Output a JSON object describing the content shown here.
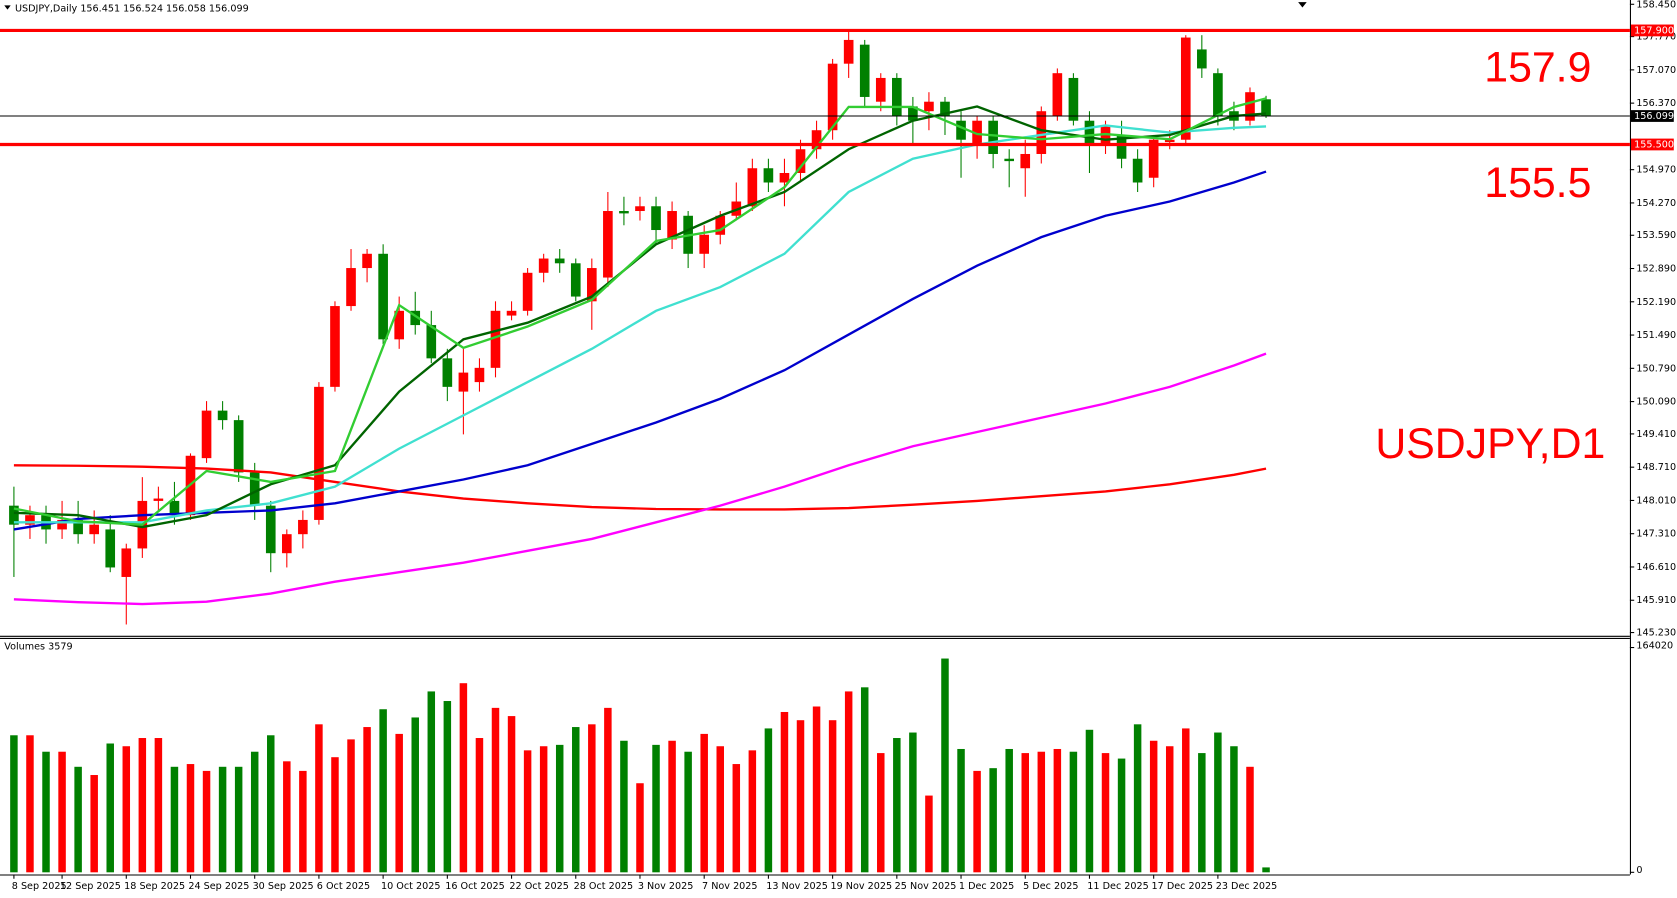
{
  "chart_data": {
    "type": "candlestick",
    "header": "USDJPY,Daily  156.451 156.524 156.058 156.099",
    "categories": [
      "8 Sep 2025",
      null,
      null,
      "12 Sep 2025",
      null,
      null,
      null,
      "18 Sep 2025",
      null,
      null,
      null,
      "24 Sep 2025",
      null,
      null,
      null,
      "30 Sep 2025",
      null,
      null,
      null,
      "6 Oct 2025",
      null,
      null,
      null,
      "10 Oct 2025",
      null,
      null,
      null,
      "16 Oct 2025",
      null,
      null,
      null,
      "22 Oct 2025",
      null,
      null,
      null,
      "28 Oct 2025",
      null,
      null,
      null,
      "3 Nov 2025",
      null,
      null,
      null,
      "7 Nov 2025",
      null,
      null,
      null,
      "13 Nov 2025",
      null,
      null,
      null,
      "19 Nov 2025",
      null,
      null,
      null,
      "25 Nov 2025",
      null,
      null,
      null,
      "1 Dec 2025",
      null,
      null,
      null,
      "5 Dec 2025",
      null,
      null,
      null,
      "11 Dec 2025",
      null,
      null,
      null,
      "17 Dec 2025",
      null,
      null,
      null,
      "23 Dec 2025",
      null,
      null,
      null
    ],
    "open": [
      147.9,
      147.5,
      147.7,
      147.4,
      147.6,
      147.3,
      147.4,
      146.4,
      147.0,
      148.0,
      148.0,
      147.7,
      148.9,
      149.9,
      149.7,
      148.6,
      147.9,
      146.9,
      147.3,
      147.6,
      150.4,
      152.1,
      152.9,
      153.2,
      151.4,
      152.0,
      151.7,
      151.0,
      150.3,
      150.5,
      150.8,
      151.9,
      152.0,
      152.8,
      153.1,
      153.0,
      152.2,
      152.7,
      154.1,
      154.1,
      154.2,
      153.5,
      154.0,
      153.2,
      153.6,
      154.0,
      154.2,
      155.0,
      154.7,
      154.9,
      155.4,
      155.8,
      157.2,
      157.6,
      156.4,
      156.9,
      156.3,
      156.2,
      156.4,
      156.0,
      155.5,
      156.0,
      155.2,
      155.0,
      155.3,
      156.1,
      156.9,
      156.0,
      155.5,
      155.7,
      155.2,
      154.8,
      155.55,
      155.6,
      157.5,
      157.0,
      156.2,
      156.0,
      156.451
    ],
    "high": [
      148.3,
      147.9,
      147.9,
      148.0,
      148.0,
      147.8,
      147.7,
      147.1,
      148.5,
      148.3,
      148.4,
      149.0,
      150.1,
      150.1,
      149.8,
      148.8,
      148.0,
      147.4,
      147.8,
      150.5,
      152.2,
      153.3,
      153.3,
      153.4,
      152.3,
      152.4,
      152.0,
      151.2,
      151.2,
      151.0,
      152.2,
      152.2,
      152.9,
      153.2,
      153.3,
      153.1,
      153.1,
      154.5,
      154.4,
      154.4,
      154.4,
      154.3,
      154.1,
      153.8,
      154.1,
      154.7,
      155.2,
      155.2,
      155.2,
      155.6,
      156.0,
      157.3,
      157.9,
      157.7,
      157.0,
      157.0,
      156.5,
      156.6,
      156.5,
      156.2,
      156.1,
      156.1,
      155.4,
      155.6,
      156.3,
      157.1,
      157.0,
      156.2,
      156.0,
      156.0,
      155.4,
      155.7,
      155.8,
      157.8,
      157.8,
      157.1,
      156.4,
      156.7,
      156.524
    ],
    "low": [
      146.4,
      147.2,
      147.1,
      147.2,
      147.1,
      147.1,
      146.5,
      145.4,
      146.8,
      147.8,
      147.5,
      147.6,
      148.8,
      149.5,
      148.4,
      147.6,
      146.5,
      146.6,
      147.0,
      147.5,
      150.3,
      152.0,
      152.6,
      151.3,
      151.2,
      151.5,
      150.9,
      150.1,
      149.4,
      150.3,
      150.6,
      151.8,
      151.9,
      152.6,
      152.8,
      152.2,
      151.6,
      152.5,
      153.8,
      153.9,
      153.4,
      153.3,
      152.9,
      152.9,
      153.4,
      153.9,
      154.1,
      154.5,
      154.2,
      154.7,
      155.2,
      155.6,
      156.9,
      156.3,
      156.2,
      155.9,
      155.5,
      155.8,
      155.7,
      154.8,
      155.2,
      155.0,
      154.6,
      154.4,
      155.1,
      156.0,
      155.9,
      154.9,
      155.3,
      155.0,
      154.5,
      154.6,
      155.4,
      155.5,
      156.9,
      155.9,
      155.8,
      155.9,
      156.058
    ],
    "close": [
      147.5,
      147.7,
      147.4,
      147.6,
      147.3,
      147.5,
      146.6,
      147.0,
      148.0,
      148.05,
      147.7,
      148.95,
      149.9,
      149.7,
      148.6,
      147.9,
      146.9,
      147.3,
      147.6,
      150.4,
      152.1,
      152.9,
      153.2,
      151.4,
      152.0,
      151.7,
      151.0,
      150.4,
      150.7,
      150.8,
      152.0,
      152.0,
      152.8,
      153.1,
      153.0,
      152.3,
      152.9,
      154.1,
      154.05,
      154.2,
      153.7,
      154.1,
      153.2,
      153.6,
      154.0,
      154.3,
      155.0,
      154.7,
      154.9,
      155.4,
      155.8,
      157.2,
      157.7,
      156.5,
      156.9,
      156.1,
      156.0,
      156.4,
      156.1,
      155.6,
      156.0,
      155.3,
      155.15,
      155.3,
      156.2,
      157.0,
      156.0,
      155.5,
      155.9,
      155.2,
      154.7,
      155.6,
      155.6,
      157.75,
      157.1,
      156.1,
      156.0,
      156.6,
      156.099
    ],
    "up_color": "#ff0000",
    "down_color": "#008000",
    "ylim": [
      145.23,
      158.45
    ],
    "yticks": [
      {
        "value": 158.45,
        "label": "158.450"
      },
      {
        "value": 157.77,
        "label": "157.770"
      },
      {
        "value": 157.07,
        "label": "157.070"
      },
      {
        "value": 156.37,
        "label": "156.370"
      },
      {
        "value": 154.97,
        "label": "154.970"
      },
      {
        "value": 154.27,
        "label": "154.270"
      },
      {
        "value": 153.59,
        "label": "153.590"
      },
      {
        "value": 152.89,
        "label": "152.890"
      },
      {
        "value": 152.19,
        "label": "152.190"
      },
      {
        "value": 151.49,
        "label": "151.490"
      },
      {
        "value": 150.79,
        "label": "150.790"
      },
      {
        "value": 150.09,
        "label": "150.090"
      },
      {
        "value": 149.41,
        "label": "149.410"
      },
      {
        "value": 148.71,
        "label": "148.710"
      },
      {
        "value": 148.01,
        "label": "148.010"
      },
      {
        "value": 147.31,
        "label": "147.310"
      },
      {
        "value": 146.61,
        "label": "146.610"
      },
      {
        "value": 145.91,
        "label": "145.910"
      },
      {
        "value": 145.23,
        "label": "145.230"
      }
    ],
    "overlay_x": [
      0,
      4,
      8,
      12,
      16,
      20,
      24,
      28,
      32,
      36,
      40,
      44,
      48,
      52,
      56,
      60,
      64,
      68,
      72,
      76,
      78
    ],
    "overlays": [
      {
        "color": "#ff0000",
        "values": [
          148.75,
          148.74,
          148.72,
          148.68,
          148.6,
          148.4,
          148.2,
          148.05,
          147.95,
          147.87,
          147.83,
          147.82,
          147.82,
          147.85,
          147.92,
          148.0,
          148.1,
          148.2,
          148.35,
          148.55,
          148.68
        ]
      },
      {
        "color": "#ff00ff",
        "values": [
          145.93,
          145.87,
          145.83,
          145.88,
          146.05,
          146.3,
          146.5,
          146.7,
          146.95,
          147.2,
          147.55,
          147.9,
          148.3,
          148.75,
          149.15,
          149.45,
          149.75,
          150.05,
          150.4,
          150.85,
          151.1
        ]
      },
      {
        "color": "#0000cd",
        "values": [
          147.4,
          147.62,
          147.7,
          147.75,
          147.8,
          147.95,
          148.2,
          148.45,
          148.75,
          149.2,
          149.65,
          150.15,
          150.75,
          151.5,
          152.25,
          152.95,
          153.55,
          154.0,
          154.3,
          154.7,
          154.93
        ]
      },
      {
        "color": "#40e0d0",
        "values": [
          147.55,
          147.55,
          147.55,
          147.8,
          147.95,
          148.3,
          149.1,
          149.8,
          150.5,
          151.2,
          152.0,
          152.5,
          153.2,
          154.5,
          155.2,
          155.5,
          155.7,
          155.9,
          155.75,
          155.85,
          155.88
        ]
      },
      {
        "color": "#006400",
        "values": [
          147.75,
          147.7,
          147.45,
          147.7,
          148.35,
          148.75,
          150.3,
          151.4,
          151.75,
          152.3,
          153.4,
          154.0,
          154.5,
          155.4,
          156.0,
          156.3,
          155.8,
          155.6,
          155.7,
          156.1,
          156.15
        ]
      },
      {
        "color": "#32cd32",
        "values": [
          147.84,
          147.57,
          147.5,
          148.63,
          148.4,
          148.63,
          152.12,
          151.22,
          151.67,
          152.23,
          153.47,
          153.7,
          154.6,
          156.29,
          156.29,
          155.72,
          155.61,
          155.72,
          155.61,
          156.29,
          156.47
        ]
      }
    ],
    "hlines": [
      {
        "value": 157.9,
        "label": "157.900",
        "color": "#ff0000"
      },
      {
        "value": 155.5,
        "label": "155.500",
        "color": "#ff0000"
      },
      {
        "value": 156.099,
        "label": "156.099",
        "color": "#000000"
      }
    ],
    "annotations": [
      "157.9",
      "155.5",
      "USDJPY,D1"
    ],
    "volume": {
      "title": "Volumes 3579",
      "ylim": [
        0,
        164020
      ],
      "yticks": [
        164020,
        0
      ],
      "values": [
        100000,
        100000,
        88000,
        88000,
        77000,
        71000,
        94000,
        92000,
        98000,
        98000,
        77000,
        79000,
        74000,
        77000,
        77000,
        88000,
        100000,
        81000,
        74000,
        108000,
        84000,
        97000,
        106000,
        119000,
        101000,
        113000,
        132000,
        125000,
        138000,
        98000,
        120000,
        114000,
        89000,
        92000,
        93000,
        106000,
        108000,
        120000,
        96000,
        65000,
        93000,
        96000,
        88000,
        101000,
        92000,
        79000,
        89000,
        105000,
        117000,
        111000,
        121000,
        111000,
        132000,
        135000,
        87000,
        98000,
        102000,
        56000,
        156000,
        90000,
        74000,
        76000,
        90000,
        87000,
        88000,
        90000,
        88000,
        104000,
        87000,
        83000,
        108000,
        96000,
        92000,
        105000,
        87000,
        102000,
        92000,
        77000,
        3579
      ]
    }
  }
}
